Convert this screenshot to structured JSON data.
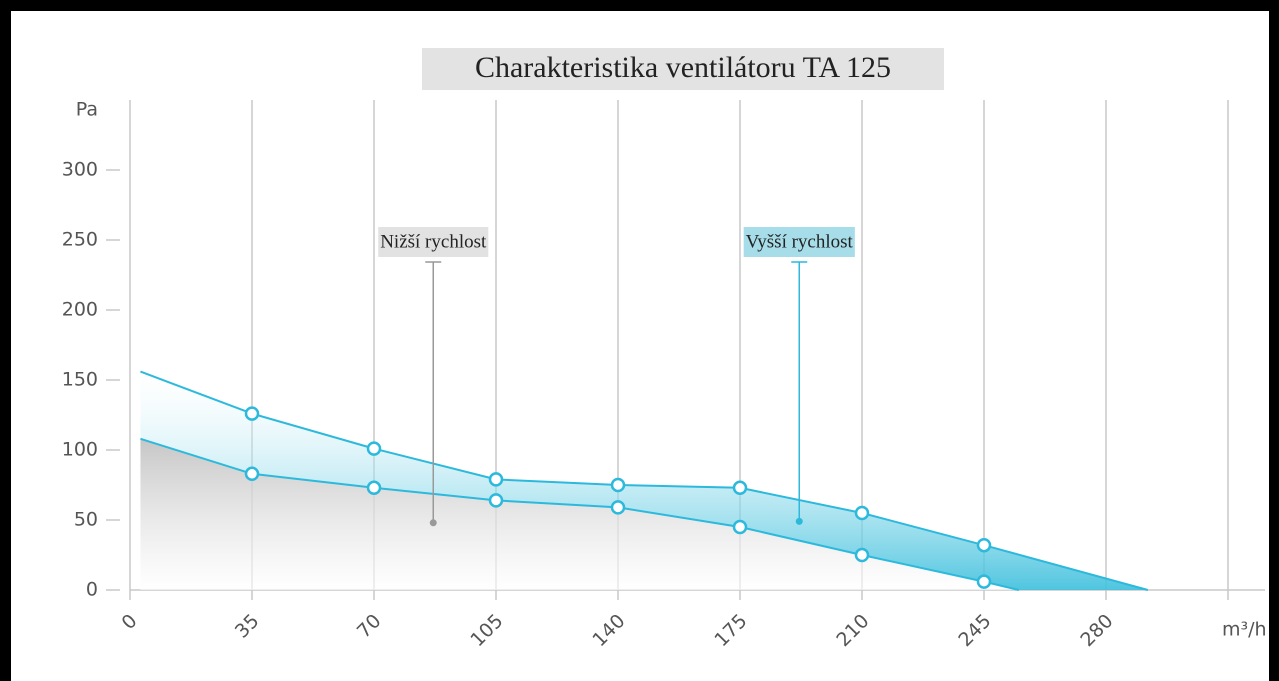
{
  "chart_data": {
    "type": "area_line",
    "title": "Charakteristika ventilátoru TA 125",
    "ylabel": "Pa",
    "xlabel": "m³/h",
    "xlim": [
      0,
      315
    ],
    "ylim": [
      0,
      350
    ],
    "xticks": [
      0,
      35,
      70,
      105,
      140,
      175,
      210,
      245,
      280
    ],
    "yticks": [
      0,
      50,
      100,
      150,
      200,
      250,
      300
    ],
    "series": [
      {
        "name": "Vyšší rychlost",
        "color": "#2cb9dc",
        "fill": "#5cc9e2",
        "label_bg": "#a6dde9",
        "x": [
          3,
          35,
          70,
          105,
          140,
          175,
          210,
          245,
          292
        ],
        "values": [
          156,
          126,
          101,
          79,
          75,
          73,
          55,
          32,
          0
        ],
        "annotation": {
          "x": 192,
          "y": 49
        }
      },
      {
        "name": "Nižší rychlost",
        "color": "#2cb9dc",
        "fill": "#c8c8c8",
        "label_bg": "#e2e2e2",
        "x": [
          3,
          35,
          70,
          105,
          140,
          175,
          210,
          245,
          255
        ],
        "values": [
          108,
          83,
          73,
          64,
          59,
          45,
          25,
          6,
          0
        ],
        "annotation": {
          "x": 87,
          "y": 48
        }
      }
    ]
  }
}
